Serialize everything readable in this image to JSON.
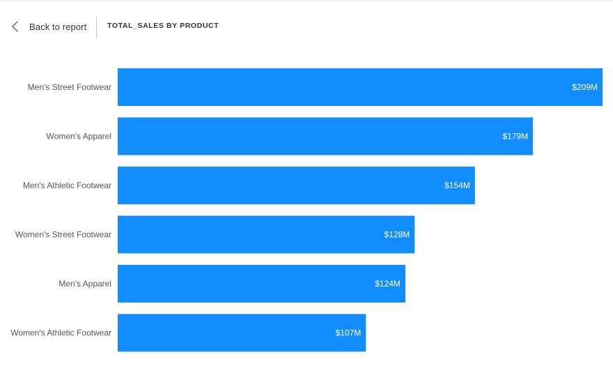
{
  "header": {
    "back_label": "Back to report",
    "back_icon": "chevron-left-icon",
    "title": "TOTAL_SALES BY PRODUCT"
  },
  "colors": {
    "bar": "#118DFF",
    "label_text": "#555555",
    "value_text": "#FFFFFF"
  },
  "chart_data": {
    "type": "bar",
    "orientation": "horizontal",
    "title": "TOTAL_SALES BY PRODUCT",
    "xlabel": "",
    "ylabel": "",
    "categories": [
      "Men's Street Footwear",
      "Women's Apparel",
      "Men's Athletic Footwear",
      "Women's Street Footwear",
      "Men's Apparel",
      "Women's Athletic Footwear"
    ],
    "values": [
      209,
      179,
      154,
      128,
      124,
      107
    ],
    "value_labels": [
      "$209M",
      "$179M",
      "$154M",
      "$128M",
      "$124M",
      "$107M"
    ],
    "unit": "$M",
    "xlim": [
      0,
      209
    ],
    "grid": false,
    "legend": "none"
  }
}
